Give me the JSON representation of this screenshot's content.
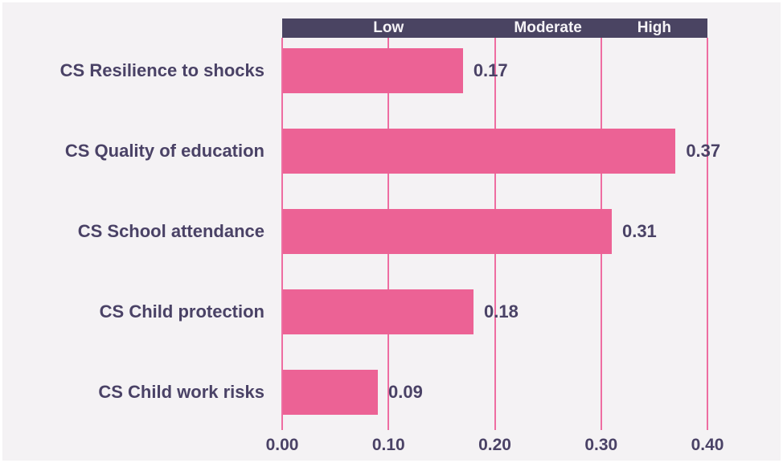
{
  "chart_data": {
    "type": "bar",
    "orientation": "horizontal",
    "categories": [
      "CS Resilience to shocks",
      "CS Quality of education",
      "CS School attendance",
      "CS Child protection",
      "CS Child work risks"
    ],
    "values": [
      0.17,
      0.37,
      0.31,
      0.18,
      0.09
    ],
    "value_labels": [
      "0.17",
      "0.37",
      "0.31",
      "0.18",
      "0.09"
    ],
    "xlim": [
      0,
      0.4
    ],
    "x_ticks": [
      "0.00",
      "0.10",
      "0.20",
      "0.30",
      "0.40"
    ],
    "x_tick_values": [
      0,
      0.1,
      0.2,
      0.3,
      0.4
    ],
    "zones": [
      {
        "label": "Low",
        "from": 0.0,
        "to": 0.2
      },
      {
        "label": "Moderate",
        "from": 0.2,
        "to": 0.3
      },
      {
        "label": "High",
        "from": 0.3,
        "to": 0.4
      }
    ],
    "grid": true,
    "legend": "none",
    "title": "",
    "xlabel": "",
    "ylabel": "",
    "colors": {
      "background": "#f4f2f4",
      "bar": "#ec6295",
      "gridline": "#ee6da1",
      "band_background": "#4a4462",
      "band_text": "#f6f4f7",
      "text": "#4a4266"
    }
  }
}
